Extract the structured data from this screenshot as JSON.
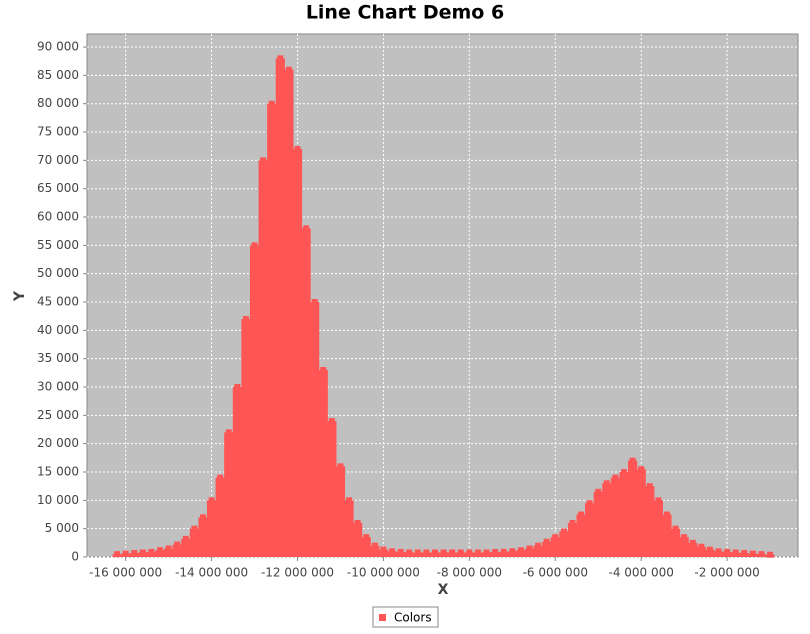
{
  "chart_data": {
    "type": "area-scatter",
    "title": "Line Chart Demo 6",
    "x_label": "X",
    "y_label": "Y",
    "series": [
      {
        "name": "Colors",
        "color": "#ff5555",
        "x": [
          -16200000,
          -16000000,
          -15800000,
          -15600000,
          -15400000,
          -15200000,
          -15000000,
          -14800000,
          -14600000,
          -14400000,
          -14200000,
          -14000000,
          -13800000,
          -13600000,
          -13400000,
          -13200000,
          -13000000,
          -12800000,
          -12600000,
          -12400000,
          -12200000,
          -12000000,
          -11800000,
          -11600000,
          -11400000,
          -11200000,
          -11000000,
          -10800000,
          -10600000,
          -10400000,
          -10200000,
          -10000000,
          -9800000,
          -9600000,
          -9400000,
          -9200000,
          -9000000,
          -8800000,
          -8600000,
          -8400000,
          -8200000,
          -8000000,
          -7800000,
          -7600000,
          -7400000,
          -7200000,
          -7000000,
          -6800000,
          -6600000,
          -6400000,
          -6200000,
          -6000000,
          -5800000,
          -5600000,
          -5400000,
          -5200000,
          -5000000,
          -4800000,
          -4600000,
          -4400000,
          -4200000,
          -4000000,
          -3800000,
          -3600000,
          -3400000,
          -3200000,
          -3000000,
          -2800000,
          -2600000,
          -2400000,
          -2200000,
          -2000000,
          -1800000,
          -1600000,
          -1400000,
          -1200000,
          -1000000
        ],
        "values": [
          500,
          600,
          700,
          800,
          900,
          1200,
          1500,
          2200,
          3200,
          5000,
          7000,
          10000,
          14000,
          22000,
          30000,
          42000,
          55000,
          70000,
          80000,
          88000,
          86000,
          72000,
          58000,
          45000,
          33000,
          24000,
          16000,
          10000,
          6000,
          3500,
          2000,
          1300,
          1000,
          900,
          800,
          800,
          800,
          800,
          800,
          800,
          800,
          800,
          800,
          800,
          900,
          900,
          1000,
          1200,
          1500,
          2000,
          2700,
          3500,
          4500,
          6000,
          7500,
          9500,
          11500,
          13000,
          14000,
          15000,
          17000,
          15500,
          12500,
          10000,
          7500,
          5000,
          3500,
          2500,
          1800,
          1300,
          1000,
          900,
          800,
          700,
          600,
          500,
          400
        ]
      }
    ],
    "xlim": [
      -16900000,
      -350000
    ],
    "ylim": [
      0,
      92300
    ],
    "xticks": [
      {
        "value": -16000000,
        "label": "-16 000 000"
      },
      {
        "value": -14000000,
        "label": "-14 000 000"
      },
      {
        "value": -12000000,
        "label": "-12 000 000"
      },
      {
        "value": -10000000,
        "label": "-10 000 000"
      },
      {
        "value": -8000000,
        "label": "-8 000 000"
      },
      {
        "value": -6000000,
        "label": "-6 000 000"
      },
      {
        "value": -4000000,
        "label": "-4 000 000"
      },
      {
        "value": -2000000,
        "label": "-2 000 000"
      }
    ],
    "yticks": [
      0,
      {
        "value": 5000,
        "label": "5 000"
      },
      {
        "value": 10000,
        "label": "10 000"
      },
      {
        "value": 15000,
        "label": "15 000"
      },
      {
        "value": 20000,
        "label": "20 000"
      },
      {
        "value": 25000,
        "label": "25 000"
      },
      {
        "value": 30000,
        "label": "30 000"
      },
      {
        "value": 35000,
        "label": "35 000"
      },
      {
        "value": 40000,
        "label": "40 000"
      },
      {
        "value": 45000,
        "label": "45 000"
      },
      {
        "value": 50000,
        "label": "50 000"
      },
      {
        "value": 55000,
        "label": "55 000"
      },
      {
        "value": 60000,
        "label": "60 000"
      },
      {
        "value": 65000,
        "label": "65 000"
      },
      {
        "value": 70000,
        "label": "70 000"
      },
      {
        "value": 75000,
        "label": "75 000"
      },
      {
        "value": 80000,
        "label": "80 000"
      },
      {
        "value": 85000,
        "label": "85 000"
      },
      {
        "value": 90000,
        "label": "90 000"
      }
    ],
    "grid": true,
    "legend": "bottom"
  }
}
